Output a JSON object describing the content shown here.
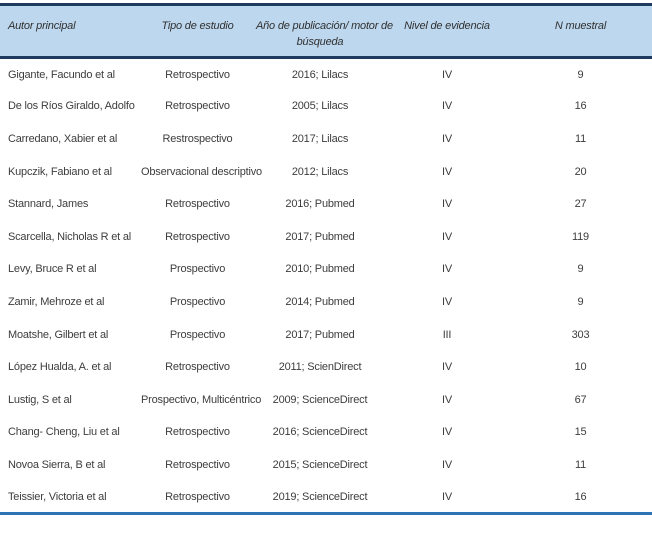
{
  "colors": {
    "header_background": "#bdd7ee",
    "top_border": "#1e3a5f",
    "header_bottom_border": "#1e3a5f",
    "table_bottom_border": "#2e74b5",
    "body_text": "#3d3d3d"
  },
  "table": {
    "columns": {
      "autor": {
        "label": "Autor principal"
      },
      "tipo": {
        "label": "Tipo de estudio"
      },
      "anio": {
        "label": "Año de publicación/ motor de búsqueda",
        "line1": "Año de publicación/ motor de",
        "line2": "búsqueda"
      },
      "nivel": {
        "label": "Nivel de evidencia"
      },
      "n": {
        "label": "N muestral"
      }
    },
    "rows": [
      {
        "autor": "Gigante, Facundo et al",
        "tipo": "Retrospectivo",
        "anio": "2016; Lilacs",
        "nivel": "IV",
        "n": "9"
      },
      {
        "autor": "De los Ríos Giraldo, Adolfo",
        "tipo": "Retrospectivo",
        "anio": "2005; Lilacs",
        "nivel": "IV",
        "n": "16"
      },
      {
        "autor": "Carredano, Xabier et al",
        "tipo": "Restrospectivo",
        "anio": "2017; Lilacs",
        "nivel": "IV",
        "n": "11"
      },
      {
        "autor": "Kupczik, Fabiano et al",
        "tipo": "Observacional descriptivo",
        "anio": "2012; Lilacs",
        "nivel": "IV",
        "n": "20"
      },
      {
        "autor": "Stannard, James",
        "tipo": "Retrospectivo",
        "anio": "2016; Pubmed",
        "nivel": "IV",
        "n": "27"
      },
      {
        "autor": "Scarcella, Nicholas R et al",
        "tipo": "Retrospectivo",
        "anio": "2017; Pubmed",
        "nivel": "IV",
        "n": "119"
      },
      {
        "autor": "Levy, Bruce R et al",
        "tipo": "Prospectivo",
        "anio": "2010; Pubmed",
        "nivel": "IV",
        "n": "9"
      },
      {
        "autor": "Zamir, Mehroze et al",
        "tipo": "Prospectivo",
        "anio": "2014; Pubmed",
        "nivel": "IV",
        "n": "9"
      },
      {
        "autor": "Moatshe, Gilbert et al",
        "tipo": "Prospectivo",
        "anio": "2017; Pubmed",
        "nivel": "III",
        "n": "303"
      },
      {
        "autor": "López Hualda, A. et al",
        "tipo": "Retrospectivo",
        "anio": "2011; ScienDirect",
        "nivel": "IV",
        "n": "10"
      },
      {
        "autor": "Lustig, S et al",
        "tipo": "Prospectivo, Multicéntrico",
        "anio": "2009; ScienceDirect",
        "nivel": "IV",
        "n": "67"
      },
      {
        "autor": "Chang- Cheng, Liu et al",
        "tipo": "Retrospectivo",
        "anio": "2016; ScienceDirect",
        "nivel": "IV",
        "n": "15"
      },
      {
        "autor": "Novoa Sierra, B et al",
        "tipo": "Retrospectivo",
        "anio": "2015; ScienceDirect",
        "nivel": "IV",
        "n": "11"
      },
      {
        "autor": "Teissier, Victoria et al",
        "tipo": "Retrospectivo",
        "anio": "2019; ScienceDirect",
        "nivel": "IV",
        "n": "16"
      }
    ]
  }
}
